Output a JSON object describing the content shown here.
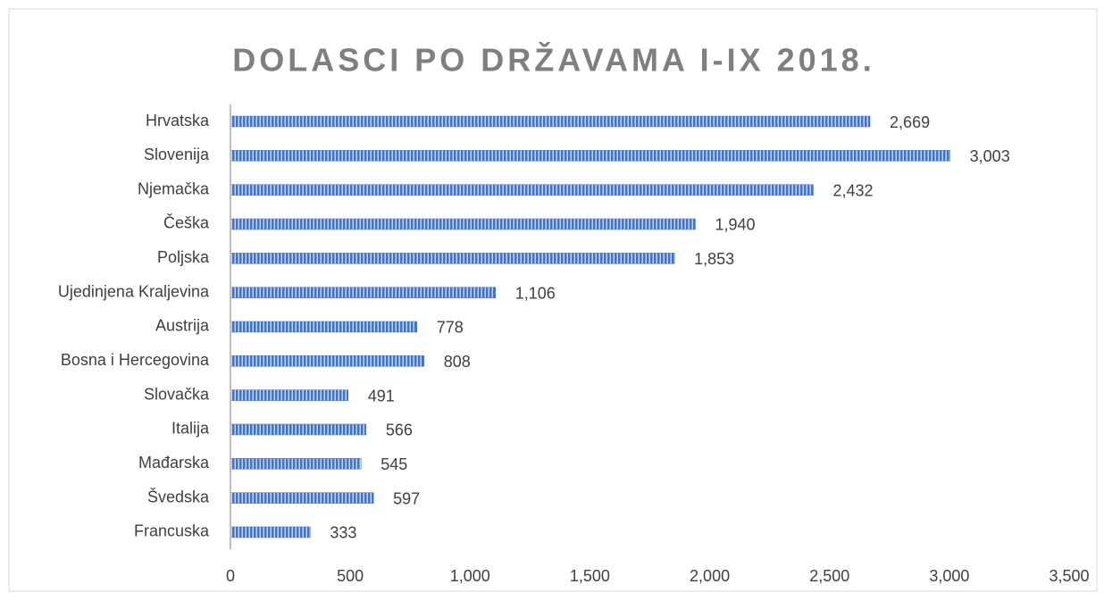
{
  "chart_data": {
    "type": "barh",
    "title": "DOLASCI PO DRŽAVAMA I-IX 2018.",
    "categories": [
      "Hrvatska",
      "Slovenija",
      "Njemačka",
      "Češka",
      "Poljska",
      "Ujedinjena Kraljevina",
      "Austrija",
      "Bosna i Hercegovina",
      "Slovačka",
      "Italija",
      "Mađarska",
      "Švedska",
      "Francuska"
    ],
    "values": [
      2669,
      3003,
      2432,
      1940,
      1853,
      1106,
      778,
      808,
      491,
      566,
      545,
      597,
      333
    ],
    "value_labels": [
      "2,669",
      "3,003",
      "2,432",
      "1,940",
      "1,853",
      "1,106",
      "778",
      "808",
      "491",
      "566",
      "545",
      "597",
      "333"
    ],
    "color": "#4472c4",
    "xlim": [
      0,
      3500
    ],
    "xticks": [
      0,
      500,
      {
        "value": 1000,
        "label": "1,000"
      },
      {
        "value": 1500,
        "label": "1,500"
      },
      {
        "value": 2000,
        "label": "2,000"
      },
      {
        "value": 2500,
        "label": "2,500"
      },
      {
        "value": 3000,
        "label": "3,000"
      },
      {
        "value": 3500,
        "label": "3,500"
      }
    ],
    "grid": false
  }
}
